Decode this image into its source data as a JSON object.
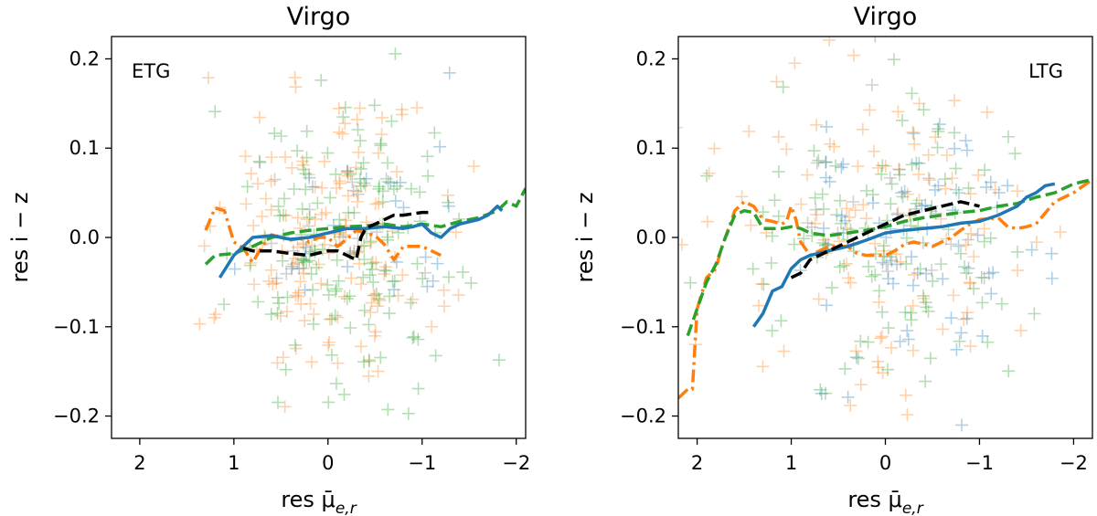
{
  "chart_data": [
    {
      "type": "scatter",
      "title": "Virgo",
      "xlabel": "res μ̄",
      "xlabel_sub": "e,r",
      "ylabel": "res i − z",
      "xlim": [
        2.3,
        -2.1
      ],
      "ylim": [
        -0.225,
        0.225
      ],
      "xticks": [
        "2",
        "1",
        "0",
        "−1",
        "−2"
      ],
      "xtick_values": [
        2,
        1,
        0,
        -1,
        -2
      ],
      "yticks": [
        "−0.2",
        "−0.1",
        "0.0",
        "0.1",
        "0.2"
      ],
      "ytick_values": [
        -0.2,
        -0.1,
        0.0,
        0.1,
        0.2
      ],
      "annotation": "ETG",
      "scatter_seed": 11,
      "scatter_groups": [
        {
          "color": "#ff7f0e",
          "count": 150,
          "xc": 0.0,
          "xs": 0.55,
          "yc": 0.0,
          "ys": 0.09
        },
        {
          "color": "#2ca02c",
          "count": 150,
          "xc": -0.2,
          "xs": 0.6,
          "yc": 0.0,
          "ys": 0.08
        },
        {
          "color": "#1f77b4",
          "count": 25,
          "xc": -0.4,
          "xs": 0.5,
          "yc": 0.01,
          "ys": 0.06
        },
        {
          "color": "#7f7f7f",
          "count": 20,
          "xc": 0.1,
          "xs": 0.5,
          "yc": 0.0,
          "ys": 0.05
        }
      ],
      "lines": [
        {
          "color": "#ff7f0e",
          "style": "dashdot",
          "points": [
            [
              1.3,
              0.008
            ],
            [
              1.2,
              0.033
            ],
            [
              1.1,
              0.03
            ],
            [
              1.0,
              -0.005
            ],
            [
              0.9,
              -0.012
            ],
            [
              0.8,
              -0.028
            ],
            [
              0.7,
              -0.01
            ],
            [
              0.6,
              0.003
            ],
            [
              0.5,
              0.0
            ],
            [
              0.4,
              -0.003
            ],
            [
              0.3,
              -0.001
            ],
            [
              0.2,
              -0.005
            ],
            [
              0.1,
              0.0
            ],
            [
              0.0,
              0.0
            ],
            [
              -0.1,
              -0.01
            ],
            [
              -0.2,
              -0.002
            ],
            [
              -0.3,
              0.008
            ],
            [
              -0.5,
              0.002
            ],
            [
              -0.6,
              -0.008
            ],
            [
              -0.7,
              -0.025
            ],
            [
              -0.8,
              -0.01
            ],
            [
              -0.9,
              -0.01
            ],
            [
              -1.0,
              -0.01
            ],
            [
              -1.1,
              -0.015
            ],
            [
              -1.2,
              -0.02
            ]
          ]
        },
        {
          "color": "#2ca02c",
          "style": "dashed",
          "points": [
            [
              1.3,
              -0.03
            ],
            [
              1.2,
              -0.02
            ],
            [
              1.0,
              -0.018
            ],
            [
              0.8,
              -0.01
            ],
            [
              0.6,
              0.0
            ],
            [
              0.4,
              0.005
            ],
            [
              0.2,
              0.008
            ],
            [
              0.0,
              0.01
            ],
            [
              -0.2,
              0.012
            ],
            [
              -0.4,
              0.013
            ],
            [
              -0.6,
              0.015
            ],
            [
              -0.8,
              0.012
            ],
            [
              -1.0,
              0.015
            ],
            [
              -1.2,
              0.012
            ],
            [
              -1.4,
              0.018
            ],
            [
              -1.6,
              0.022
            ],
            [
              -1.8,
              0.03
            ],
            [
              -1.9,
              0.04
            ],
            [
              -2.0,
              0.035
            ],
            [
              -2.1,
              0.055
            ]
          ]
        },
        {
          "color": "#1f77b4",
          "style": "solid",
          "points": [
            [
              1.15,
              -0.045
            ],
            [
              1.0,
              -0.02
            ],
            [
              0.9,
              -0.01
            ],
            [
              0.8,
              0.0
            ],
            [
              0.6,
              0.002
            ],
            [
              0.4,
              -0.002
            ],
            [
              0.2,
              0.0
            ],
            [
              0.0,
              0.005
            ],
            [
              -0.2,
              0.01
            ],
            [
              -0.4,
              0.01
            ],
            [
              -0.6,
              0.012
            ],
            [
              -0.8,
              0.01
            ],
            [
              -0.9,
              0.012
            ],
            [
              -1.0,
              0.015
            ],
            [
              -1.1,
              0.005
            ],
            [
              -1.2,
              0.0
            ],
            [
              -1.3,
              0.01
            ],
            [
              -1.4,
              0.015
            ],
            [
              -1.6,
              0.02
            ],
            [
              -1.7,
              0.025
            ],
            [
              -1.8,
              0.035
            ],
            [
              -1.85,
              0.03
            ]
          ]
        },
        {
          "color": "#000000",
          "style": "dashed",
          "points": [
            [
              0.9,
              -0.012
            ],
            [
              0.8,
              -0.015
            ],
            [
              0.6,
              -0.015
            ],
            [
              0.4,
              -0.018
            ],
            [
              0.2,
              -0.02
            ],
            [
              0.0,
              -0.015
            ],
            [
              -0.1,
              -0.015
            ],
            [
              -0.2,
              -0.02
            ],
            [
              -0.3,
              -0.025
            ],
            [
              -0.35,
              0.0
            ],
            [
              -0.4,
              0.01
            ],
            [
              -0.5,
              0.015
            ],
            [
              -0.6,
              0.02
            ],
            [
              -0.7,
              0.025
            ],
            [
              -0.8,
              0.025
            ],
            [
              -1.0,
              0.028
            ],
            [
              -1.1,
              0.028
            ]
          ]
        }
      ]
    },
    {
      "type": "scatter",
      "title": "Virgo",
      "xlabel": "res μ̄",
      "xlabel_sub": "e,r",
      "ylabel": "res i − z",
      "xlim": [
        2.2,
        -2.2
      ],
      "ylim": [
        -0.225,
        0.225
      ],
      "xticks": [
        "2",
        "1",
        "0",
        "−1",
        "−2"
      ],
      "xtick_values": [
        2,
        1,
        0,
        -1,
        -2
      ],
      "yticks": [
        "−0.2",
        "−0.1",
        "0.0",
        "0.1",
        "0.2"
      ],
      "ytick_values": [
        -0.2,
        -0.1,
        0.0,
        0.1,
        0.2
      ],
      "annotation": "LTG",
      "scatter_seed": 29,
      "scatter_groups": [
        {
          "color": "#ff7f0e",
          "count": 110,
          "xc": 0.0,
          "xs": 0.9,
          "yc": 0.01,
          "ys": 0.1
        },
        {
          "color": "#2ca02c",
          "count": 120,
          "xc": -0.2,
          "xs": 0.8,
          "yc": 0.0,
          "ys": 0.08
        },
        {
          "color": "#1f77b4",
          "count": 70,
          "xc": -0.4,
          "xs": 0.6,
          "yc": 0.0,
          "ys": 0.07
        },
        {
          "color": "#7f7f7f",
          "count": 20,
          "xc": -0.1,
          "xs": 0.5,
          "yc": 0.0,
          "ys": 0.05
        }
      ],
      "lines": [
        {
          "color": "#ff7f0e",
          "style": "dashdot",
          "points": [
            [
              2.2,
              -0.18
            ],
            [
              2.1,
              -0.17
            ],
            [
              2.05,
              -0.17
            ],
            [
              2.0,
              -0.08
            ],
            [
              1.9,
              -0.045
            ],
            [
              1.8,
              -0.035
            ],
            [
              1.75,
              -0.015
            ],
            [
              1.7,
              0.0
            ],
            [
              1.6,
              0.03
            ],
            [
              1.5,
              0.04
            ],
            [
              1.4,
              0.035
            ],
            [
              1.3,
              0.02
            ],
            [
              1.2,
              0.018
            ],
            [
              1.1,
              0.015
            ],
            [
              1.05,
              0.018
            ],
            [
              1.0,
              0.035
            ],
            [
              0.95,
              0.02
            ],
            [
              0.9,
              -0.005
            ],
            [
              0.8,
              -0.02
            ],
            [
              0.7,
              -0.015
            ],
            [
              0.6,
              -0.01
            ],
            [
              0.4,
              -0.01
            ],
            [
              0.3,
              -0.018
            ],
            [
              0.2,
              -0.02
            ],
            [
              0.1,
              -0.02
            ],
            [
              0.0,
              -0.02
            ],
            [
              -0.1,
              -0.015
            ],
            [
              -0.2,
              -0.008
            ],
            [
              -0.3,
              -0.005
            ],
            [
              -0.5,
              -0.01
            ],
            [
              -0.6,
              -0.005
            ],
            [
              -0.7,
              0.0
            ],
            [
              -0.8,
              0.008
            ],
            [
              -0.9,
              0.015
            ],
            [
              -1.0,
              0.02
            ],
            [
              -1.2,
              0.022
            ],
            [
              -1.3,
              0.012
            ],
            [
              -1.4,
              0.01
            ],
            [
              -1.5,
              0.012
            ],
            [
              -1.6,
              0.015
            ],
            [
              -1.8,
              0.04
            ],
            [
              -2.0,
              0.05
            ],
            [
              -2.2,
              0.065
            ]
          ]
        },
        {
          "color": "#2ca02c",
          "style": "dashed",
          "points": [
            [
              2.1,
              -0.11
            ],
            [
              2.0,
              -0.08
            ],
            [
              1.9,
              -0.05
            ],
            [
              1.8,
              -0.03
            ],
            [
              1.7,
              0.0
            ],
            [
              1.6,
              0.025
            ],
            [
              1.5,
              0.03
            ],
            [
              1.4,
              0.028
            ],
            [
              1.3,
              0.01
            ],
            [
              1.2,
              0.01
            ],
            [
              1.1,
              0.01
            ],
            [
              1.0,
              0.012
            ],
            [
              0.9,
              0.01
            ],
            [
              0.8,
              0.005
            ],
            [
              0.6,
              0.002
            ],
            [
              0.4,
              0.005
            ],
            [
              0.2,
              0.008
            ],
            [
              0.0,
              0.012
            ],
            [
              -0.2,
              0.018
            ],
            [
              -0.4,
              0.022
            ],
            [
              -0.6,
              0.025
            ],
            [
              -0.8,
              0.028
            ],
            [
              -1.0,
              0.03
            ],
            [
              -1.2,
              0.035
            ],
            [
              -1.4,
              0.038
            ],
            [
              -1.6,
              0.045
            ],
            [
              -1.8,
              0.05
            ],
            [
              -2.0,
              0.06
            ],
            [
              -2.2,
              0.065
            ]
          ]
        },
        {
          "color": "#1f77b4",
          "style": "solid",
          "points": [
            [
              1.4,
              -0.1
            ],
            [
              1.3,
              -0.085
            ],
            [
              1.2,
              -0.06
            ],
            [
              1.1,
              -0.055
            ],
            [
              1.0,
              -0.035
            ],
            [
              0.9,
              -0.025
            ],
            [
              0.8,
              -0.02
            ],
            [
              0.6,
              -0.015
            ],
            [
              0.4,
              -0.01
            ],
            [
              0.2,
              -0.003
            ],
            [
              0.0,
              0.005
            ],
            [
              -0.2,
              0.008
            ],
            [
              -0.4,
              0.01
            ],
            [
              -0.6,
              0.012
            ],
            [
              -0.8,
              0.016
            ],
            [
              -1.0,
              0.018
            ],
            [
              -1.2,
              0.025
            ],
            [
              -1.4,
              0.035
            ],
            [
              -1.5,
              0.045
            ],
            [
              -1.6,
              0.05
            ],
            [
              -1.7,
              0.058
            ],
            [
              -1.8,
              0.06
            ]
          ]
        },
        {
          "color": "#000000",
          "style": "dashed",
          "points": [
            [
              1.0,
              -0.045
            ],
            [
              0.9,
              -0.04
            ],
            [
              0.8,
              -0.025
            ],
            [
              0.6,
              -0.015
            ],
            [
              0.4,
              -0.005
            ],
            [
              0.2,
              0.005
            ],
            [
              0.0,
              0.015
            ],
            [
              -0.2,
              0.025
            ],
            [
              -0.4,
              0.03
            ],
            [
              -0.6,
              0.035
            ],
            [
              -0.8,
              0.04
            ],
            [
              -1.0,
              0.035
            ]
          ]
        }
      ]
    }
  ]
}
